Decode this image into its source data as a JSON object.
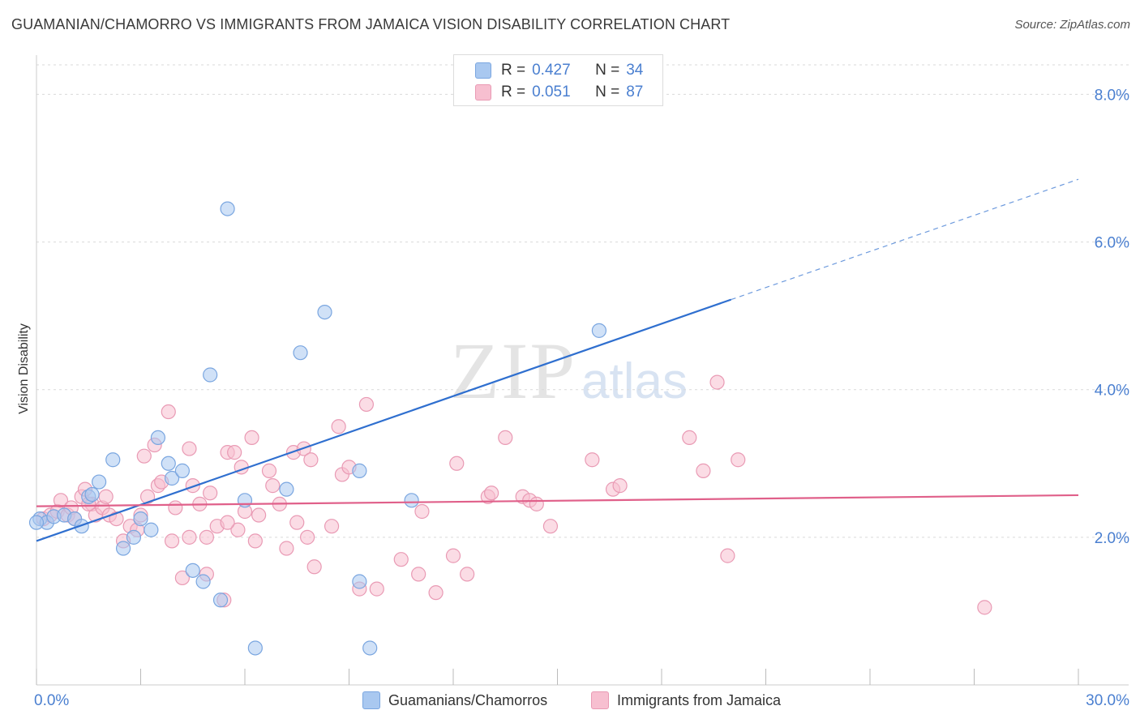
{
  "title": "GUAMANIAN/CHAMORRO VS IMMIGRANTS FROM JAMAICA VISION DISABILITY CORRELATION CHART",
  "source": "Source: ZipAtlas.com",
  "watermark": {
    "zip": "ZIP",
    "atlas": "atlas"
  },
  "legend": {
    "series1": {
      "r_label": "R =",
      "r_value": "0.427",
      "n_label": "N =",
      "n_value": "34"
    },
    "series2": {
      "r_label": "R =",
      "r_value": "0.051",
      "n_label": "N =",
      "n_value": "87"
    }
  },
  "bottom_legend": {
    "series1": "Guamanians/Chamorros",
    "series2": "Immigrants from Jamaica"
  },
  "colors": {
    "blue_fill": "#a9c8f0",
    "blue_stroke": "#7aa6e0",
    "blue_line": "#2f6fcf",
    "pink_fill": "#f7bfd0",
    "pink_stroke": "#e99ab4",
    "pink_line": "#e0608a",
    "tick_text": "#4a7fd0",
    "grid": "#d9d9d9"
  },
  "chart_data": {
    "type": "scatter",
    "title": "GUAMANIAN/CHAMORRO VS IMMIGRANTS FROM JAMAICA VISION DISABILITY CORRELATION CHART",
    "xlabel": "",
    "ylabel": "Vision Disability",
    "xlim": [
      0,
      30
    ],
    "ylim": [
      0,
      8.4
    ],
    "x_tick_labels": [
      "0.0%",
      "30.0%"
    ],
    "y_ticks": [
      2,
      4,
      6,
      8
    ],
    "y_tick_labels": [
      "2.0%",
      "4.0%",
      "6.0%",
      "8.0%"
    ],
    "grid": true,
    "legend_position": "top-center",
    "series": [
      {
        "name": "Guamanians/Chamorros",
        "color": "blue",
        "points": [
          [
            0.1,
            2.25
          ],
          [
            0.3,
            2.2
          ],
          [
            0.5,
            2.28
          ],
          [
            0.8,
            2.3
          ],
          [
            1.1,
            2.25
          ],
          [
            1.3,
            2.15
          ],
          [
            1.5,
            2.55
          ],
          [
            1.6,
            2.58
          ],
          [
            1.8,
            2.75
          ],
          [
            2.2,
            3.05
          ],
          [
            2.5,
            1.85
          ],
          [
            2.8,
            2.0
          ],
          [
            3.0,
            2.25
          ],
          [
            3.3,
            2.1
          ],
          [
            3.5,
            3.35
          ],
          [
            3.8,
            3.0
          ],
          [
            3.9,
            2.8
          ],
          [
            4.2,
            2.9
          ],
          [
            4.5,
            1.55
          ],
          [
            4.8,
            1.4
          ],
          [
            5.0,
            4.2
          ],
          [
            5.3,
            1.15
          ],
          [
            5.5,
            6.45
          ],
          [
            6.0,
            2.5
          ],
          [
            6.3,
            0.5
          ],
          [
            7.2,
            2.65
          ],
          [
            7.6,
            4.5
          ],
          [
            8.3,
            5.05
          ],
          [
            9.3,
            1.4
          ],
          [
            9.3,
            2.9
          ],
          [
            9.6,
            0.5
          ],
          [
            10.8,
            2.5
          ],
          [
            16.2,
            4.8
          ],
          [
            0.0,
            2.2
          ]
        ],
        "trend": {
          "x": [
            0,
            20
          ],
          "y": [
            1.95,
            5.22
          ],
          "dashed_to": [
            30,
            6.85
          ]
        },
        "r": 0.427,
        "n": 34
      },
      {
        "name": "Immigrants from Jamaica",
        "color": "pink",
        "points": [
          [
            0.2,
            2.25
          ],
          [
            0.4,
            2.3
          ],
          [
            0.6,
            2.35
          ],
          [
            0.7,
            2.5
          ],
          [
            0.9,
            2.3
          ],
          [
            1.0,
            2.4
          ],
          [
            1.1,
            2.25
          ],
          [
            1.3,
            2.55
          ],
          [
            1.4,
            2.65
          ],
          [
            1.6,
            2.45
          ],
          [
            1.7,
            2.3
          ],
          [
            1.9,
            2.4
          ],
          [
            2.1,
            2.3
          ],
          [
            2.3,
            2.25
          ],
          [
            2.5,
            1.95
          ],
          [
            2.7,
            2.15
          ],
          [
            2.9,
            2.1
          ],
          [
            3.0,
            2.3
          ],
          [
            3.1,
            3.1
          ],
          [
            3.2,
            2.55
          ],
          [
            3.4,
            3.25
          ],
          [
            3.5,
            2.7
          ],
          [
            3.6,
            2.75
          ],
          [
            3.8,
            3.7
          ],
          [
            3.9,
            1.95
          ],
          [
            4.0,
            2.4
          ],
          [
            4.2,
            1.45
          ],
          [
            4.4,
            2.0
          ],
          [
            4.4,
            3.2
          ],
          [
            4.5,
            2.7
          ],
          [
            4.7,
            2.45
          ],
          [
            4.9,
            1.5
          ],
          [
            5.0,
            2.6
          ],
          [
            5.2,
            2.15
          ],
          [
            5.4,
            1.15
          ],
          [
            5.5,
            3.15
          ],
          [
            5.7,
            3.15
          ],
          [
            5.8,
            2.1
          ],
          [
            5.9,
            2.95
          ],
          [
            6.0,
            2.35
          ],
          [
            6.2,
            3.35
          ],
          [
            6.3,
            1.95
          ],
          [
            6.4,
            2.3
          ],
          [
            6.7,
            2.9
          ],
          [
            6.8,
            2.7
          ],
          [
            7.0,
            2.45
          ],
          [
            7.2,
            1.85
          ],
          [
            7.4,
            3.15
          ],
          [
            7.5,
            2.2
          ],
          [
            7.7,
            3.2
          ],
          [
            7.9,
            3.05
          ],
          [
            8.0,
            1.6
          ],
          [
            8.5,
            2.15
          ],
          [
            8.7,
            3.5
          ],
          [
            8.8,
            2.85
          ],
          [
            9.0,
            2.95
          ],
          [
            9.3,
            1.3
          ],
          [
            9.5,
            3.8
          ],
          [
            9.8,
            1.3
          ],
          [
            10.5,
            1.7
          ],
          [
            11.0,
            1.5
          ],
          [
            11.1,
            2.35
          ],
          [
            11.5,
            1.25
          ],
          [
            12.0,
            1.75
          ],
          [
            12.1,
            3.0
          ],
          [
            12.4,
            1.5
          ],
          [
            13.0,
            2.55
          ],
          [
            13.1,
            2.6
          ],
          [
            13.5,
            3.35
          ],
          [
            14.0,
            2.55
          ],
          [
            14.2,
            2.5
          ],
          [
            14.4,
            2.45
          ],
          [
            14.8,
            2.15
          ],
          [
            16.0,
            3.05
          ],
          [
            16.6,
            2.65
          ],
          [
            16.8,
            2.7
          ],
          [
            18.8,
            3.35
          ],
          [
            19.2,
            2.9
          ],
          [
            19.6,
            4.1
          ],
          [
            19.9,
            1.75
          ],
          [
            20.2,
            3.05
          ],
          [
            27.3,
            1.05
          ],
          [
            5.5,
            2.2
          ],
          [
            7.8,
            2.0
          ],
          [
            2.0,
            2.55
          ],
          [
            1.5,
            2.45
          ],
          [
            4.9,
            2.0
          ]
        ],
        "trend": {
          "x": [
            0,
            30
          ],
          "y": [
            2.42,
            2.57
          ]
        },
        "r": 0.051,
        "n": 87
      }
    ]
  }
}
